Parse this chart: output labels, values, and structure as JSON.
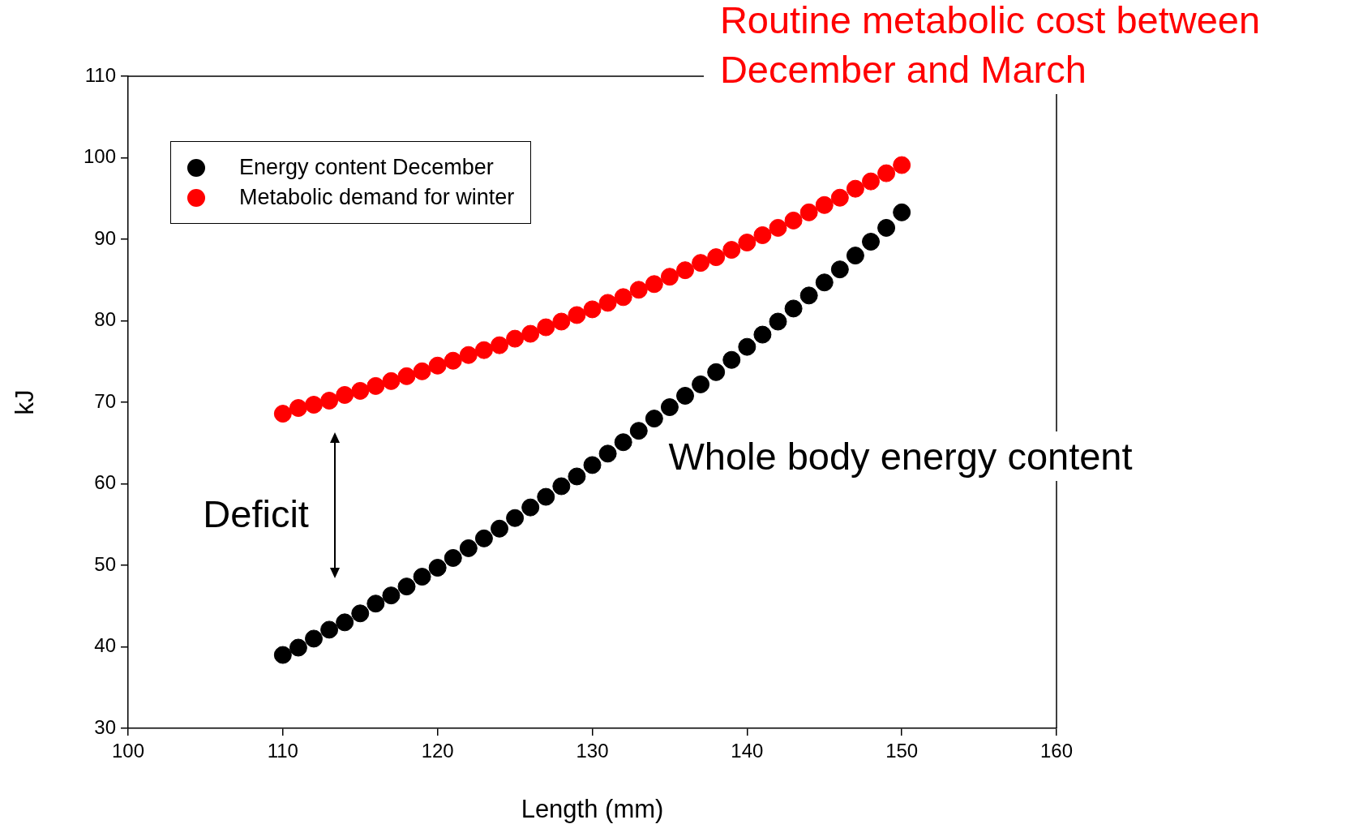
{
  "chart_data": {
    "type": "scatter",
    "xlabel": "Length (mm)",
    "ylabel": "kJ",
    "x": [
      110,
      111,
      112,
      113,
      114,
      115,
      116,
      117,
      118,
      119,
      120,
      121,
      122,
      123,
      124,
      125,
      126,
      127,
      128,
      129,
      130,
      131,
      132,
      133,
      134,
      135,
      136,
      137,
      138,
      139,
      140,
      141,
      142,
      143,
      144,
      145,
      146,
      147,
      148,
      149,
      150
    ],
    "series": [
      {
        "name": "Energy content December",
        "color": "#000000",
        "values": [
          39.0,
          39.9,
          41.0,
          42.1,
          43.0,
          44.1,
          45.3,
          46.3,
          47.4,
          48.6,
          49.7,
          50.9,
          52.1,
          53.3,
          54.5,
          55.8,
          57.1,
          58.4,
          59.7,
          60.9,
          62.3,
          63.7,
          65.1,
          66.5,
          68.0,
          69.4,
          70.8,
          72.2,
          73.7,
          75.2,
          76.8,
          78.3,
          79.9,
          81.5,
          83.1,
          84.7,
          86.3,
          88.0,
          89.7,
          91.4,
          93.3
        ]
      },
      {
        "name": "Metabolic demand for winter",
        "color": "#ff0000",
        "values": [
          68.6,
          69.3,
          69.7,
          70.2,
          70.9,
          71.4,
          72.0,
          72.6,
          73.2,
          73.8,
          74.5,
          75.1,
          75.8,
          76.4,
          77.0,
          77.8,
          78.4,
          79.2,
          79.9,
          80.7,
          81.4,
          82.2,
          82.9,
          83.8,
          84.5,
          85.4,
          86.2,
          87.1,
          87.8,
          88.7,
          89.6,
          90.5,
          91.4,
          92.3,
          93.3,
          94.2,
          95.1,
          96.2,
          97.1,
          98.1,
          99.1
        ]
      }
    ],
    "xlim": [
      100,
      160
    ],
    "xticks": [
      100,
      110,
      120,
      130,
      140,
      150,
      160
    ],
    "ylim": [
      30,
      110
    ],
    "yticks": [
      30,
      40,
      50,
      60,
      70,
      80,
      90,
      100,
      110
    ],
    "grid": false,
    "legend": "top left",
    "marker": "circle",
    "annotations": [
      "Routine metabolic cost  between December and March",
      "Whole body energy content",
      "Deficit"
    ]
  }
}
